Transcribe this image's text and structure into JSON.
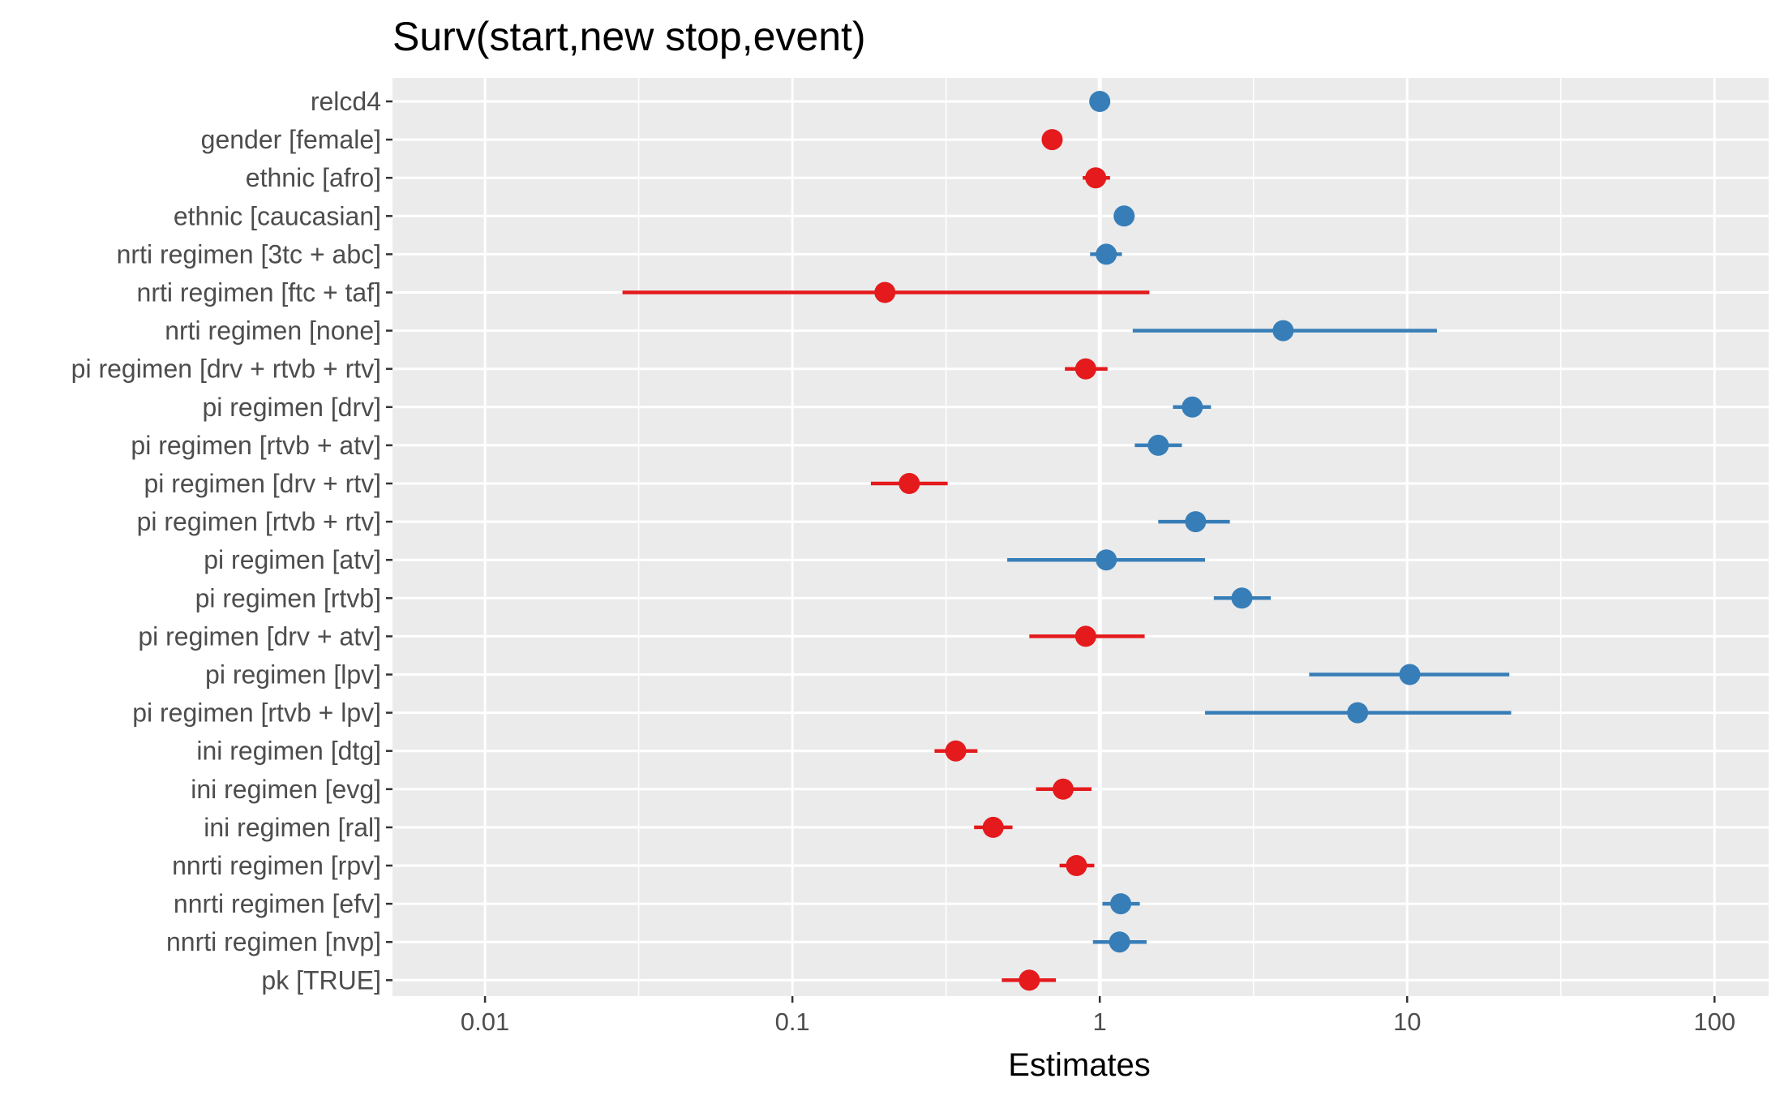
{
  "chart_data": {
    "type": "scatter",
    "title": "Surv(start,new stop,event)",
    "xlabel": "Estimates",
    "ylabel": "",
    "x_scale": "log10",
    "xlim": [
      0.005,
      150
    ],
    "x_ticks": [
      {
        "value": 0.01,
        "label": "0.01"
      },
      {
        "value": 0.1,
        "label": "0.1"
      },
      {
        "value": 1,
        "label": "1"
      },
      {
        "value": 10,
        "label": "10"
      },
      {
        "value": 100,
        "label": "100"
      }
    ],
    "reference_line": 1,
    "grid": true,
    "colors": {
      "positive": "#377EB8",
      "negative": "#E41A1C",
      "panel": "#EBEBEB",
      "grid": "#FFFFFF"
    },
    "terms": [
      {
        "label": "relcd4",
        "estimate": 1.0,
        "low": 1.0,
        "high": 1.0
      },
      {
        "label": "gender [female]",
        "estimate": 0.7,
        "low": 0.66,
        "high": 0.75
      },
      {
        "label": "ethnic [afro]",
        "estimate": 0.97,
        "low": 0.88,
        "high": 1.08
      },
      {
        "label": "ethnic [caucasian]",
        "estimate": 1.2,
        "low": 1.18,
        "high": 1.22
      },
      {
        "label": "nrti regimen [3tc + abc]",
        "estimate": 1.05,
        "low": 0.93,
        "high": 1.18
      },
      {
        "label": "nrti regimen [ftc + taf]",
        "estimate": 0.2,
        "low": 0.028,
        "high": 1.45
      },
      {
        "label": "nrti regimen [none]",
        "estimate": 3.95,
        "low": 1.28,
        "high": 12.5
      },
      {
        "label": "pi regimen [drv + rtvb + rtv]",
        "estimate": 0.9,
        "low": 0.77,
        "high": 1.06
      },
      {
        "label": "pi regimen [drv]",
        "estimate": 2.0,
        "low": 1.73,
        "high": 2.3
      },
      {
        "label": "pi regimen [rtvb + atv]",
        "estimate": 1.55,
        "low": 1.3,
        "high": 1.85
      },
      {
        "label": "pi regimen [drv + rtv]",
        "estimate": 0.24,
        "low": 0.18,
        "high": 0.32
      },
      {
        "label": "pi regimen [rtvb + rtv]",
        "estimate": 2.05,
        "low": 1.55,
        "high": 2.65
      },
      {
        "label": "pi regimen [atv]",
        "estimate": 1.05,
        "low": 0.5,
        "high": 2.2
      },
      {
        "label": "pi regimen [rtvb]",
        "estimate": 2.9,
        "low": 2.35,
        "high": 3.6
      },
      {
        "label": "pi regimen [drv + atv]",
        "estimate": 0.9,
        "low": 0.59,
        "high": 1.4
      },
      {
        "label": "pi regimen [lpv]",
        "estimate": 10.2,
        "low": 4.8,
        "high": 21.5
      },
      {
        "label": "pi regimen [rtvb + lpv]",
        "estimate": 6.9,
        "low": 2.2,
        "high": 21.8
      },
      {
        "label": "ini regimen [dtg]",
        "estimate": 0.34,
        "low": 0.29,
        "high": 0.4
      },
      {
        "label": "ini regimen [evg]",
        "estimate": 0.76,
        "low": 0.62,
        "high": 0.94
      },
      {
        "label": "ini regimen [ral]",
        "estimate": 0.45,
        "low": 0.39,
        "high": 0.52
      },
      {
        "label": "nnrti regimen [rpv]",
        "estimate": 0.84,
        "low": 0.74,
        "high": 0.96
      },
      {
        "label": "nnrti regimen [efv]",
        "estimate": 1.17,
        "low": 1.02,
        "high": 1.35
      },
      {
        "label": "nnrti regimen [nvp]",
        "estimate": 1.16,
        "low": 0.95,
        "high": 1.42
      },
      {
        "label": "pk [TRUE]",
        "estimate": 0.59,
        "low": 0.48,
        "high": 0.72
      }
    ]
  }
}
